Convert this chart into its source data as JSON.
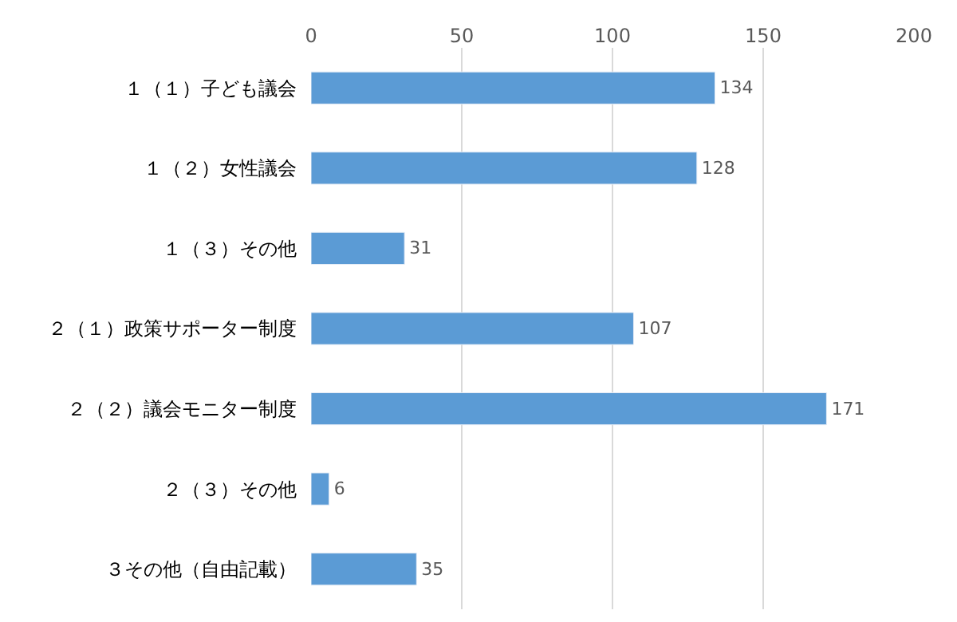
{
  "chart_data": {
    "type": "bar",
    "orientation": "horizontal",
    "categories": [
      "１（１）子ども議会",
      "１（２）女性議会",
      "１（３）その他",
      "２（１）政策サポーター制度",
      "２（２）議会モニター制度",
      "２（３）その他",
      "３その他（自由記載）"
    ],
    "values": [
      134,
      128,
      31,
      107,
      171,
      6,
      35
    ],
    "color": "#5b9bd5",
    "xlim": [
      0,
      200
    ],
    "xticks": [
      0,
      50,
      100,
      150,
      200
    ],
    "grid": "x",
    "data_labels": true,
    "legend": false
  }
}
